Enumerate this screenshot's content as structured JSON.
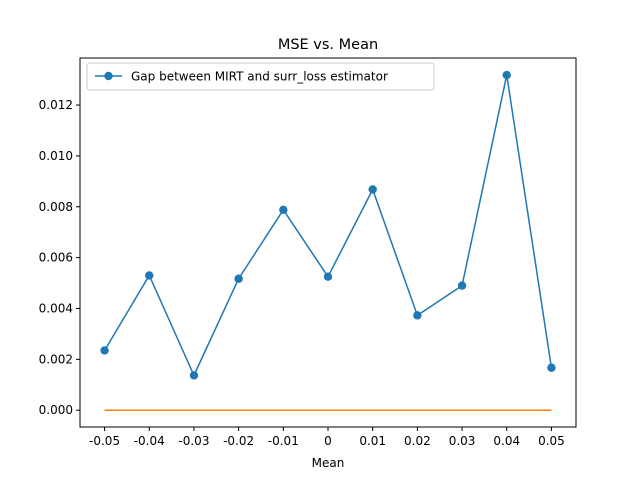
{
  "chart_data": {
    "type": "line",
    "title": "MSE vs. Mean",
    "xlabel": "Mean",
    "ylabel": "",
    "x": [
      -0.05,
      -0.04,
      -0.03,
      -0.02,
      -0.01,
      0.0,
      0.01,
      0.02,
      0.03,
      0.04,
      0.05
    ],
    "x_tick_labels": [
      "-0.05",
      "-0.04",
      "-0.03",
      "-0.02",
      "-0.01",
      "0",
      "0.01",
      "0.02",
      "0.03",
      "0.04",
      "0.05"
    ],
    "y_ticks": [
      0.0,
      0.002,
      0.004,
      0.006,
      0.008,
      0.01,
      0.012
    ],
    "y_tick_labels": [
      "0.000",
      "0.002",
      "0.004",
      "0.006",
      "0.008",
      "0.010",
      "0.012"
    ],
    "xlim": [
      -0.0555,
      0.0555
    ],
    "ylim": [
      -0.00066,
      0.01385
    ],
    "grid": false,
    "legend_position": "top-left",
    "series": [
      {
        "name": "Gap between MIRT and surr_loss estimator",
        "color": "#1f77b4",
        "marker": "circle",
        "values": [
          0.00235,
          0.0053,
          0.00137,
          0.00517,
          0.00788,
          0.00525,
          0.00868,
          0.00373,
          0.0049,
          0.01318,
          0.00167
        ]
      },
      {
        "color": "#ff7f0e",
        "marker": "none",
        "values": [
          0,
          0,
          0,
          0,
          0,
          0,
          0,
          0,
          0,
          0,
          0
        ]
      }
    ]
  }
}
